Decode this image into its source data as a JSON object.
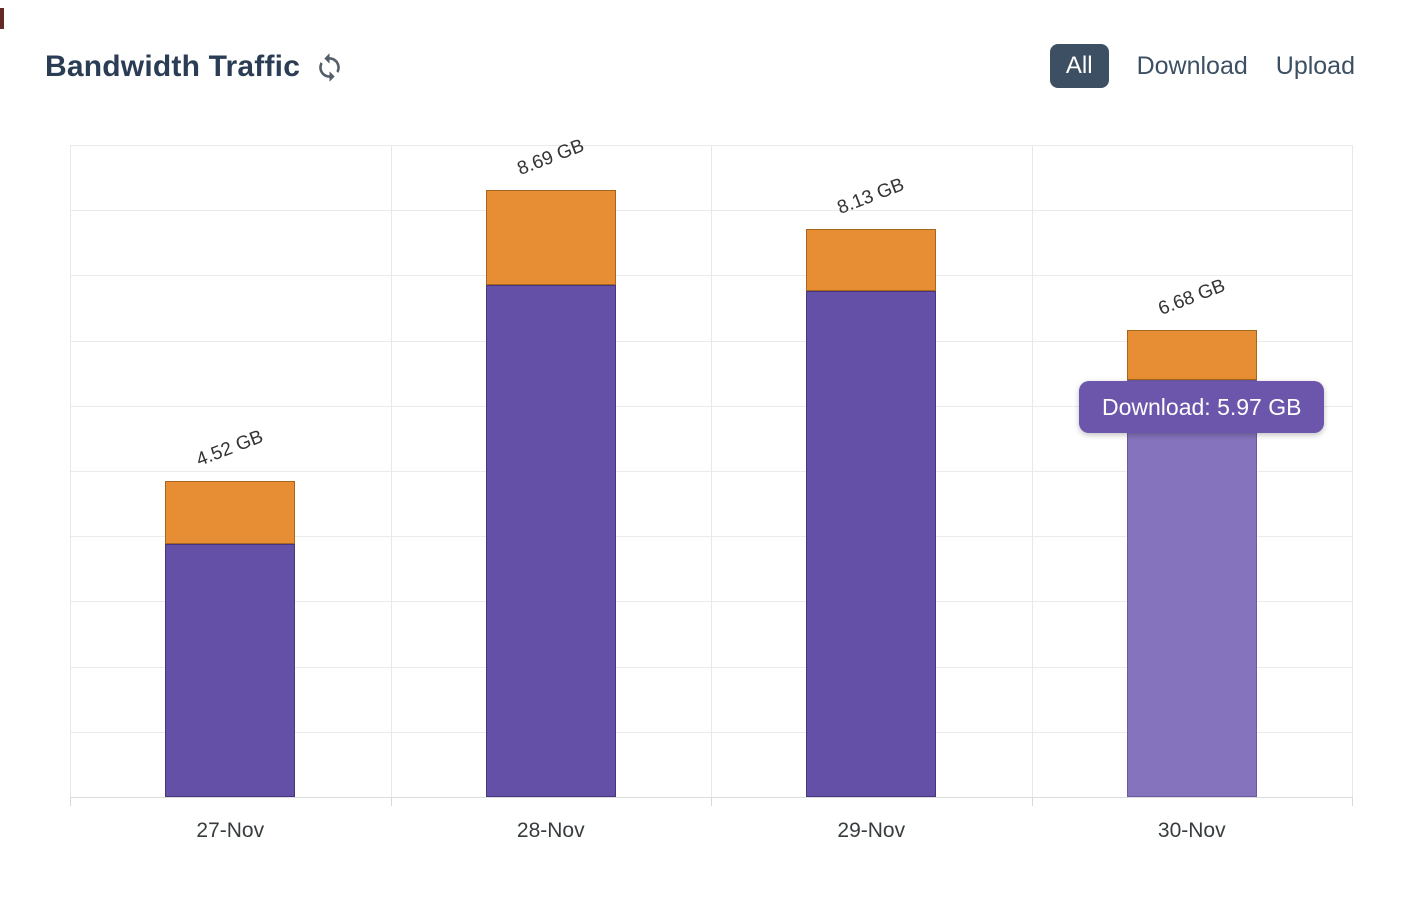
{
  "header": {
    "title": "Bandwidth Traffic",
    "tabs": [
      {
        "label": "All",
        "active": true
      },
      {
        "label": "Download",
        "active": false
      },
      {
        "label": "Upload",
        "active": false
      }
    ]
  },
  "tooltip": {
    "series": "Download",
    "value": "5.97 GB",
    "text": "Download: 5.97 GB"
  },
  "colors": {
    "download": "#6550a8",
    "download_hover": "#8673bd",
    "upload": "#e78e35",
    "tooltip_bg": "#6b56ac",
    "active_tab_bg": "#3d4f63",
    "title_text": "#2b3d54",
    "axis_label": "#373d3f",
    "gridline": "#ebebeb"
  },
  "chart_data": {
    "type": "bar",
    "stacked": true,
    "title": "Bandwidth Traffic",
    "categories": [
      "27-Nov",
      "28-Nov",
      "29-Nov",
      "30-Nov"
    ],
    "series": [
      {
        "name": "Download",
        "color": "#6550a8",
        "values": [
          3.62,
          7.33,
          7.24,
          5.97
        ]
      },
      {
        "name": "Upload",
        "color": "#e78e35",
        "values": [
          0.9,
          1.36,
          0.89,
          0.71
        ]
      }
    ],
    "totals": [
      4.52,
      8.69,
      8.13,
      6.68
    ],
    "total_labels": [
      "4.52 GB",
      "8.69 GB",
      "8.13 GB",
      "6.68 GB"
    ],
    "unit": "GB",
    "xlabel": "",
    "ylabel": "",
    "ylim": [
      0,
      9.33
    ],
    "grid": true,
    "legend_position": "none",
    "y_axis_labels_visible": false,
    "hovered_category": "30-Nov",
    "hovered_series": "Download"
  }
}
